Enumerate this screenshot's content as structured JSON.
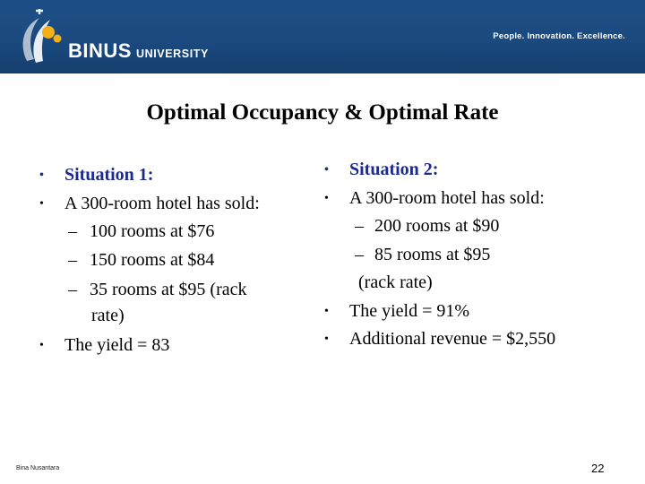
{
  "header": {
    "logo_main": "BINUS",
    "logo_sub": "UNIVERSITY",
    "tagline": "People. Innovation. Excellence.",
    "color": "#1d4f86"
  },
  "title": "Optimal Occupancy & Optimal Rate",
  "left": {
    "heading": "Situation 1:",
    "line1": "A 300-room hotel has sold:",
    "sub1": "100 rooms at $76",
    "sub2": "150 rooms at $84",
    "sub3a": "35 rooms at $95 (rack",
    "sub3b": "rate)",
    "line2": "The yield = 83"
  },
  "right": {
    "heading": "Situation 2:",
    "line1": "A 300-room hotel has sold:",
    "sub1": "200 rooms at $90",
    "sub2": "85 rooms at $95",
    "sub2b": "(rack rate)",
    "line2": "The yield = 91%",
    "line3": "Additional revenue = $2,550"
  },
  "footer": {
    "author": "Bina Nusantara",
    "page": "22"
  },
  "bullet_glyph": "•",
  "dash_glyph": "–"
}
